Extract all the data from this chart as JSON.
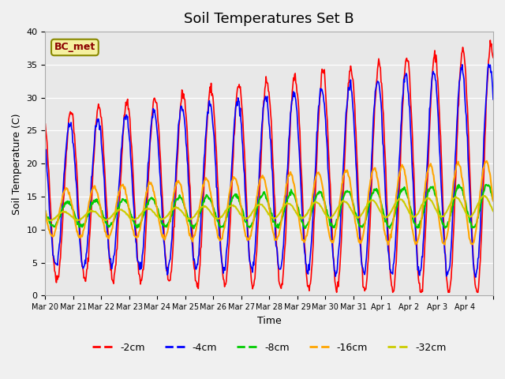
{
  "title": "Soil Temperatures Set B",
  "xlabel": "Time",
  "ylabel": "Soil Temperature (C)",
  "ylim": [
    0,
    40
  ],
  "label_text": "BC_met",
  "series_labels": [
    "-2cm",
    "-4cm",
    "-8cm",
    "-16cm",
    "-32cm"
  ],
  "series_colors": [
    "#ff0000",
    "#0000ff",
    "#00cc00",
    "#ffa500",
    "#cccc00"
  ],
  "background_color": "#e8e8e8",
  "fig_background": "#f0f0f0",
  "grid_color": "#ffffff",
  "tick_dates": [
    "Mar 20",
    "Mar 21",
    "Mar 22",
    "Mar 23",
    "Mar 24",
    "Mar 25",
    "Mar 26",
    "Mar 27",
    "Mar 28",
    "Mar 29",
    "Mar 30",
    "Mar 31",
    "Apr 1",
    "Apr 2",
    "Apr 3",
    "Apr 4",
    ""
  ],
  "yticks": [
    0,
    5,
    10,
    15,
    20,
    25,
    30,
    35,
    40
  ],
  "title_fontsize": 13,
  "axis_fontsize": 9,
  "tick_fontsize": 7,
  "legend_fontsize": 9,
  "n_days": 16
}
